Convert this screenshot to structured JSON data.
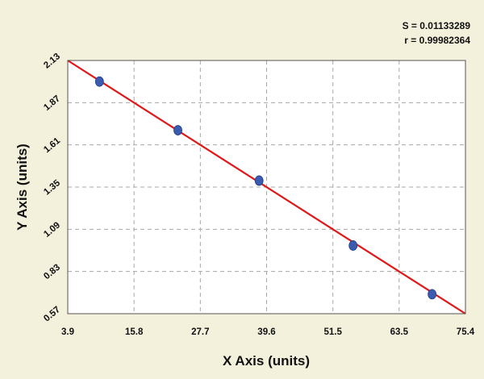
{
  "stats": {
    "s_label": "S = 0.01133289",
    "r_label": "r = 0.99982364"
  },
  "chart_data": {
    "type": "scatter",
    "title": "",
    "xlabel": "X Axis (units)",
    "ylabel": "Y Axis (units)",
    "xlim": [
      3.9,
      75.4
    ],
    "ylim": [
      0.57,
      2.13
    ],
    "x_ticks": [
      "3.9",
      "15.8",
      "27.7",
      "39.6",
      "51.5",
      "63.5",
      "75.4"
    ],
    "y_ticks": [
      "2.13",
      "1.87",
      "1.61",
      "1.35",
      "1.09",
      "0.83",
      "0.57"
    ],
    "grid": true,
    "points": {
      "x": [
        9.6,
        23.7,
        38.3,
        55.2,
        69.4
      ],
      "y": [
        2.0,
        1.7,
        1.39,
        0.99,
        0.69
      ],
      "color": "#3b5bb0"
    },
    "fit_line": {
      "x": [
        3.9,
        75.4
      ],
      "y": [
        2.13,
        0.57
      ],
      "color": "#e01818"
    }
  }
}
